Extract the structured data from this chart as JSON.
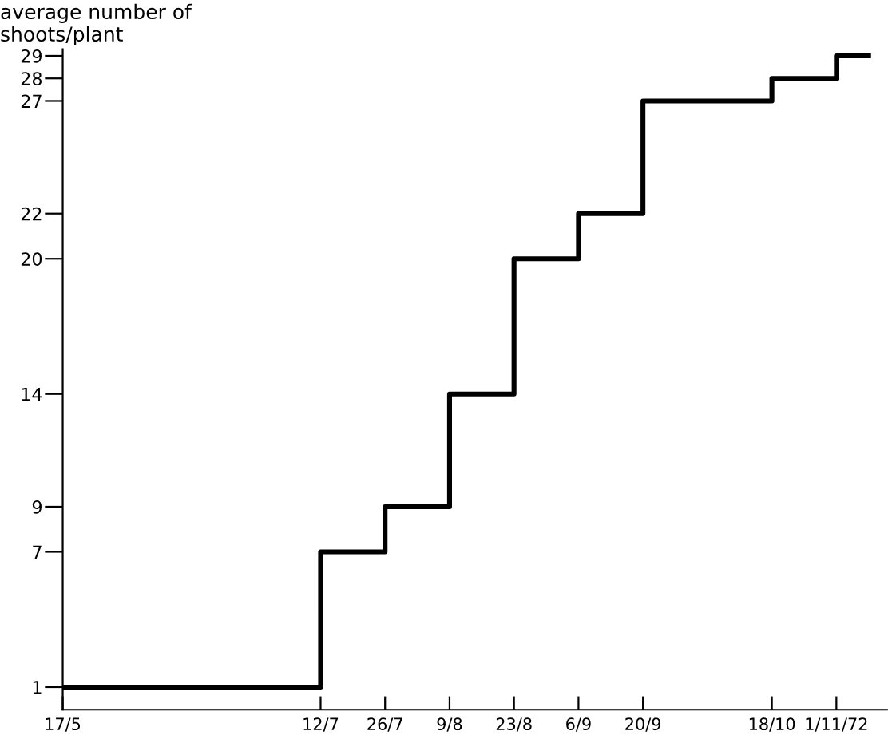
{
  "chart_data": {
    "type": "step",
    "ylabel": "average number of\nshoots/plant",
    "x": [
      "1972-05-17",
      "1972-07-12",
      "1972-07-26",
      "1972-08-09",
      "1972-08-23",
      "1972-09-06",
      "1972-09-20",
      "1972-10-18",
      "1972-11-01",
      "1972-11-08"
    ],
    "series": [
      {
        "color": "#000000",
        "values": [
          1,
          7,
          9,
          14,
          20,
          22,
          27,
          28,
          29,
          29
        ]
      }
    ],
    "xlim": [
      "1972-05-17",
      "1972-11-12"
    ],
    "xticks": [
      {
        "value": "1972-05-17",
        "label": "17/5"
      },
      {
        "value": "1972-07-12",
        "label": "12/7"
      },
      {
        "value": "1972-07-26",
        "label": "26/7"
      },
      {
        "value": "1972-08-09",
        "label": "9/8"
      },
      {
        "value": "1972-08-23",
        "label": "23/8"
      },
      {
        "value": "1972-09-06",
        "label": "6/9"
      },
      {
        "value": "1972-09-20",
        "label": "20/9"
      },
      {
        "value": "1972-10-18",
        "label": "18/10"
      },
      {
        "value": "1972-11-01",
        "label": "1/11/72"
      }
    ],
    "ylim": [
      0,
      29.3
    ],
    "yticks": [
      1,
      7,
      9,
      14,
      20,
      22,
      27,
      28,
      29
    ],
    "grid": false,
    "legend": false,
    "line_style": "solid",
    "marker": "none"
  }
}
